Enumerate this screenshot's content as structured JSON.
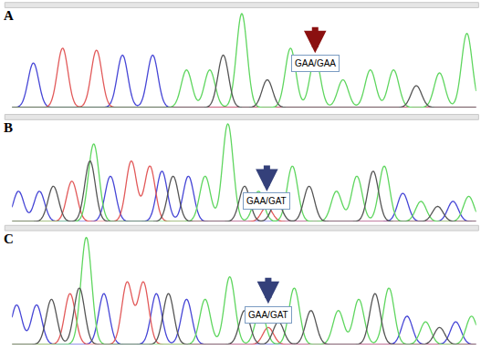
{
  "chart_data": [
    {
      "type": "chromatogram",
      "title": "A",
      "tick_labels": false,
      "xlim": [
        0,
        100
      ],
      "ylim": [
        0,
        100
      ],
      "annotation": {
        "text": "GAA/GAA",
        "x": 65.3,
        "color": "#8b1010"
      },
      "series": [
        {
          "color": "#4646d6",
          "x": [
            4.6,
            23.8,
            30.3
          ],
          "values": [
            45,
            53,
            53
          ]
        },
        {
          "color": "#e25a5a",
          "x": [
            10.9,
            18.2
          ],
          "values": [
            60,
            58
          ]
        },
        {
          "color": "#5fd65f",
          "x": [
            37.6,
            42.6,
            49.5,
            60.0,
            65.3,
            71.3,
            77.2,
            82.2,
            92.1,
            98.0
          ],
          "values": [
            38,
            38,
            95,
            60,
            50,
            28,
            38,
            38,
            35,
            75
          ]
        },
        {
          "color": "#555555",
          "x": [
            45.5,
            55.0,
            87.1
          ],
          "values": [
            53,
            28,
            22
          ]
        }
      ]
    },
    {
      "type": "chromatogram",
      "title": "B",
      "tick_labels": false,
      "xlim": [
        0,
        100
      ],
      "ylim": [
        0,
        100
      ],
      "annotation": {
        "text": "GAA/GAT",
        "x": 54.9,
        "color": "#34407a"
      },
      "series": [
        {
          "color": "#4646d6",
          "x": [
            1.4,
            5.9,
            21.2,
            32.3,
            38.0,
            84.2,
            95.0
          ],
          "values": [
            30,
            30,
            45,
            50,
            45,
            28,
            20
          ]
        },
        {
          "color": "#e25a5a",
          "x": [
            12.9,
            25.7,
            29.7,
            54.9
          ],
          "values": [
            40,
            60,
            55,
            15
          ]
        },
        {
          "color": "#5fd65f",
          "x": [
            17.6,
            41.6,
            46.5,
            53.1,
            60.4,
            69.9,
            74.3,
            80.2,
            88.1,
            98.4
          ],
          "values": [
            77,
            45,
            97,
            30,
            55,
            30,
            45,
            55,
            20,
            25
          ]
        },
        {
          "color": "#555555",
          "x": [
            8.9,
            16.8,
            34.7,
            50.1,
            57.0,
            64.0,
            77.8,
            91.7
          ],
          "values": [
            35,
            60,
            45,
            35,
            20,
            35,
            50,
            15
          ]
        }
      ]
    },
    {
      "type": "chromatogram",
      "title": "C",
      "tick_labels": false,
      "xlim": [
        0,
        100
      ],
      "ylim": [
        0,
        100
      ],
      "annotation": {
        "text": "GAA/GAT",
        "x": 55.2,
        "color": "#34407a"
      },
      "series": [
        {
          "color": "#4646d6",
          "x": [
            1.0,
            5.3,
            19.8,
            31.1,
            37.6,
            85.1,
            95.6
          ],
          "values": [
            35,
            35,
            45,
            45,
            40,
            25,
            20
          ]
        },
        {
          "color": "#e25a5a",
          "x": [
            12.5,
            24.8,
            28.3,
            55.2
          ],
          "values": [
            45,
            55,
            55,
            15
          ]
        },
        {
          "color": "#5fd65f",
          "x": [
            16.0,
            41.6,
            46.9,
            53.5,
            60.8,
            70.3,
            74.7,
            81.2,
            89.1,
            99.0
          ],
          "values": [
            95,
            40,
            60,
            30,
            50,
            30,
            40,
            50,
            20,
            25
          ]
        },
        {
          "color": "#555555",
          "x": [
            8.5,
            14.5,
            33.7,
            50.1,
            57.4,
            64.4,
            78.2,
            92.1
          ],
          "values": [
            40,
            50,
            45,
            30,
            20,
            30,
            45,
            15
          ]
        }
      ]
    }
  ]
}
